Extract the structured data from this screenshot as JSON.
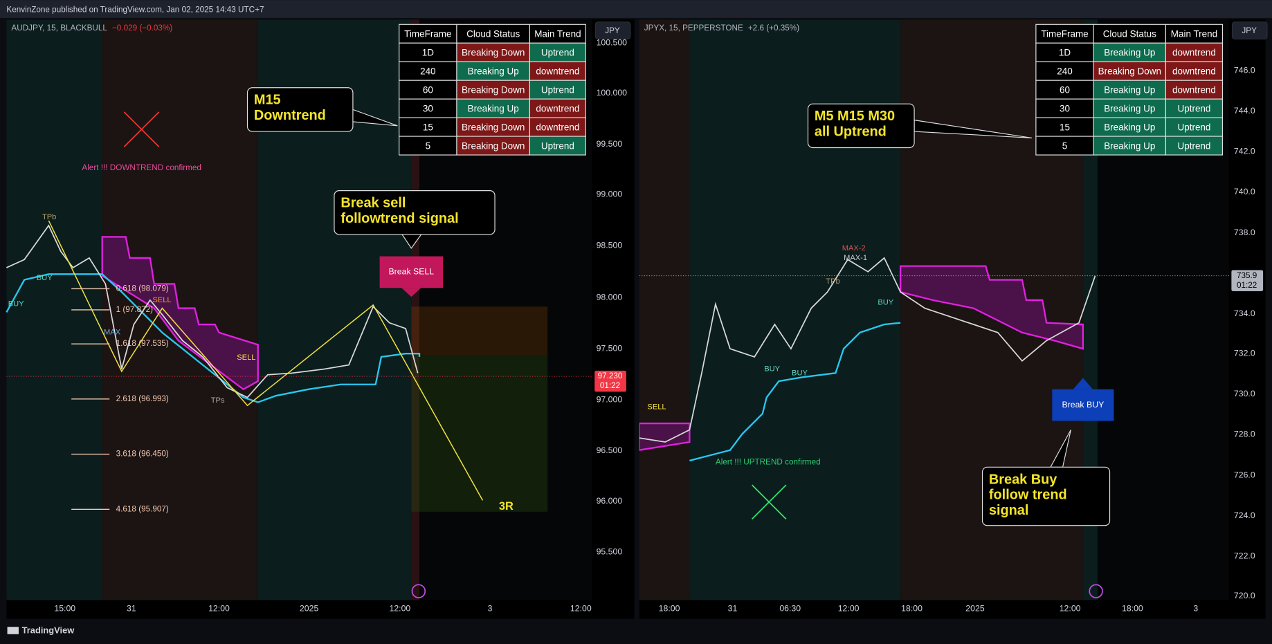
{
  "header": {
    "publisher": "KenvinZone published on TradingView.com, Jan 02, 2025 14:43 UTC+7"
  },
  "footer": {
    "brand": "TradingView"
  },
  "panels": [
    {
      "symbol": "AUDJPY, 15, BLACKBULL",
      "change": "−0.029 (−0.03%)",
      "currency": "JPY",
      "table": {
        "header": [
          "TimeFrame",
          "Cloud Status",
          "Main Trend"
        ],
        "rows": [
          [
            "1D",
            "Breaking Down",
            "Uptrend"
          ],
          [
            "240",
            "Breaking Up",
            "downtrend"
          ],
          [
            "60",
            "Breaking Down",
            "Uptrend"
          ],
          [
            "30",
            "Breaking Up",
            "downtrend"
          ],
          [
            "15",
            "Breaking Down",
            "downtrend"
          ],
          [
            "5",
            "Breaking Down",
            "Uptrend"
          ]
        ]
      },
      "price_axis": [
        "100.500",
        "100.000",
        "99.500",
        "99.000",
        "98.500",
        "98.000",
        "97.500",
        "97.000",
        "96.500",
        "96.000",
        "95.500"
      ],
      "time_axis": [
        "15:00",
        "31",
        "12:00",
        "2025",
        "12:00",
        "3",
        "12:00"
      ],
      "last_price": "97.230",
      "countdown": "01:22",
      "callouts": [
        {
          "lines": [
            "M15",
            "Downtrend"
          ]
        },
        {
          "lines": [
            "Break sell",
            "followtrend signal"
          ]
        }
      ],
      "signal": "Break SELL",
      "alert": "Alert !!! DOWNTREND confirmed",
      "target": "3R",
      "fib_levels": [
        "0.618 (98.079)",
        "1 (97.872)",
        "1.618 (97.535)",
        "2.618 (96.993)",
        "3.618 (96.450)",
        "4.618 (95.907)"
      ],
      "markers": [
        "TPb",
        "BUY",
        "BUY",
        "SELL",
        "MAX",
        "SELL",
        "TPs"
      ]
    },
    {
      "symbol": "JPYX, 15, PEPPERSTONE",
      "change": "+2.6 (+0.35%)",
      "currency": "JPY",
      "table": {
        "header": [
          "TimeFrame",
          "Cloud Status",
          "Main Trend"
        ],
        "rows": [
          [
            "1D",
            "Breaking Up",
            "downtrend"
          ],
          [
            "240",
            "Breaking Down",
            "downtrend"
          ],
          [
            "60",
            "Breaking Up",
            "downtrend"
          ],
          [
            "30",
            "Breaking Up",
            "Uptrend"
          ],
          [
            "15",
            "Breaking Up",
            "Uptrend"
          ],
          [
            "5",
            "Breaking Up",
            "Uptrend"
          ]
        ]
      },
      "price_axis": [
        "746.0",
        "744.0",
        "742.0",
        "740.0",
        "738.0",
        "734.0",
        "732.0",
        "730.0",
        "728.0",
        "726.0",
        "724.0",
        "722.0",
        "720.0"
      ],
      "time_axis": [
        "18:00",
        "31",
        "06:30",
        "12:00",
        "18:00",
        "2025",
        "12:00",
        "18:00",
        "3"
      ],
      "last_price": "735.9",
      "countdown": "01:22",
      "callouts": [
        {
          "lines": [
            "M5 M15 M30",
            "all Uptrend"
          ]
        },
        {
          "lines": [
            "Break Buy",
            "follow trend",
            "signal"
          ]
        }
      ],
      "signal": "Break BUY",
      "alert": "Alert !!! UPTREND confirmed",
      "markers": [
        "SELL",
        "MAX-2",
        "MAX-1",
        "TPb",
        "BUY",
        "BUY",
        "BUY"
      ]
    }
  ]
}
